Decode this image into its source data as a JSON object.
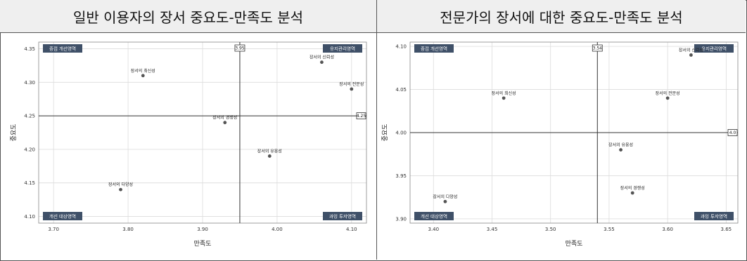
{
  "chart_data": [
    {
      "type": "scatter",
      "title": "일반 이용자의 장서 중요도-만족도 분석",
      "xlabel": "만족도",
      "ylabel": "중요도",
      "xlim": [
        3.68,
        4.12
      ],
      "ylim": [
        4.09,
        4.36
      ],
      "xticks": [
        "3.70",
        "3.80",
        "3.90",
        "4.00",
        "4.10"
      ],
      "yticks": [
        "4.10",
        "4.15",
        "4.20",
        "4.25",
        "4.30",
        "4.35"
      ],
      "xref": 3.95,
      "xref_label": "3.95",
      "yref": 4.25,
      "yref_label": "4.25",
      "grid": true,
      "quadrants": {
        "top_left": "중점 개선영역",
        "top_right": "유지관리영역",
        "bottom_left": "개선 대상영역",
        "bottom_right": "과잉 투자영역"
      },
      "points": [
        {
          "label": "장서의 최신성",
          "x": 3.82,
          "y": 4.31
        },
        {
          "label": "장서의 신뢰성",
          "x": 4.06,
          "y": 4.33
        },
        {
          "label": "장서의 전문성",
          "x": 4.1,
          "y": 4.29
        },
        {
          "label": "장서의 경쟁성",
          "x": 3.93,
          "y": 4.24
        },
        {
          "label": "장서의 유용성",
          "x": 3.99,
          "y": 4.19
        },
        {
          "label": "장서의 다양성",
          "x": 3.79,
          "y": 4.14
        }
      ]
    },
    {
      "type": "scatter",
      "title": "전문가의 장서에 대한 중요도-만족도 분석",
      "xlabel": "만족도",
      "ylabel": "중요도",
      "xlim": [
        3.38,
        3.66
      ],
      "ylim": [
        3.895,
        4.105
      ],
      "xticks": [
        "3.40",
        "3.45",
        "3.50",
        "3.55",
        "3.60",
        "3.65"
      ],
      "yticks": [
        "3.90",
        "3.95",
        "4.00",
        "4.05",
        "4.10"
      ],
      "xref": 3.54,
      "xref_label": "3.54",
      "yref": 4.0,
      "yref_label": "4.0",
      "grid": true,
      "quadrants": {
        "top_left": "중점 개선영역",
        "top_right": "유지관리영역",
        "bottom_left": "개선 대상영역",
        "bottom_right": "과잉 투자영역"
      },
      "points": [
        {
          "label": "장서의 신뢰성",
          "x": 3.62,
          "y": 4.09
        },
        {
          "label": "장서의 최신성",
          "x": 3.46,
          "y": 4.04
        },
        {
          "label": "장서의 전문성",
          "x": 3.6,
          "y": 4.04
        },
        {
          "label": "장서의 유용성",
          "x": 3.56,
          "y": 3.98
        },
        {
          "label": "장서의 경쟁성",
          "x": 3.57,
          "y": 3.93
        },
        {
          "label": "장서의 다양성",
          "x": 3.41,
          "y": 3.92
        }
      ]
    }
  ]
}
